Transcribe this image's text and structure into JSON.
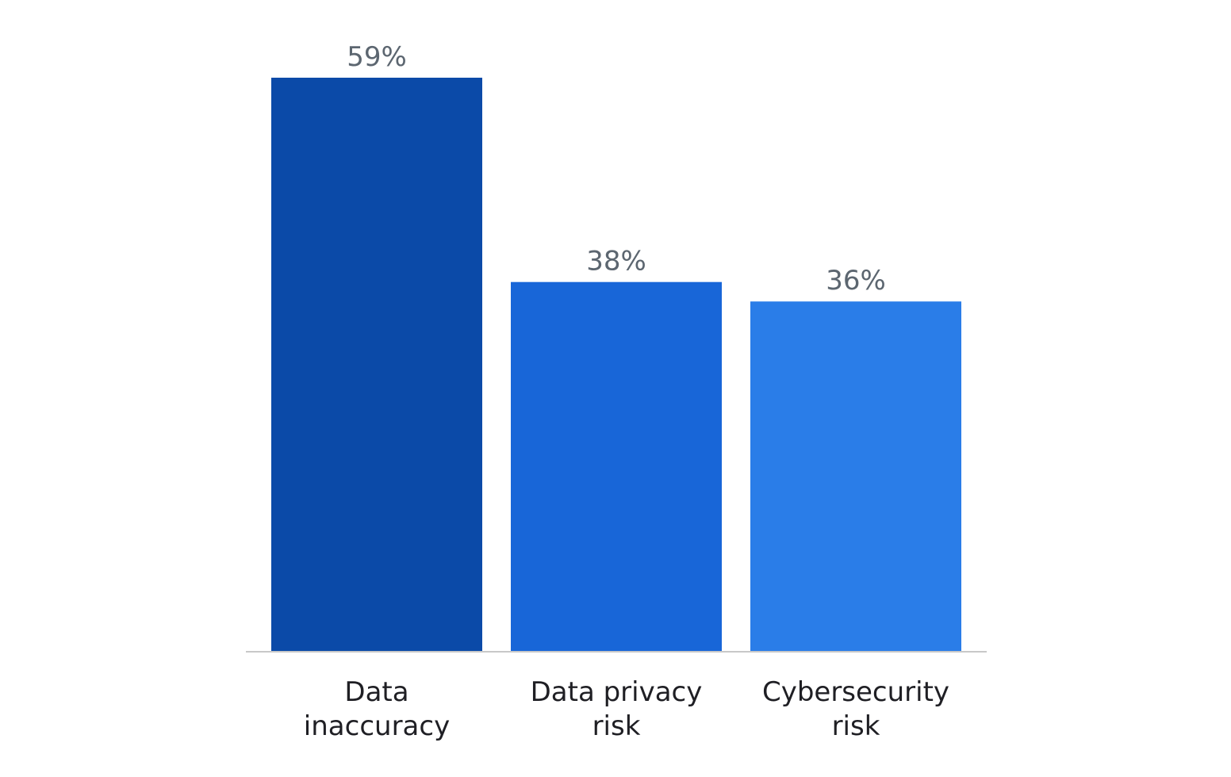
{
  "chart_data": {
    "type": "bar",
    "categories": [
      "Data inaccuracy",
      "Data privacy risk",
      "Cybersecurity risk"
    ],
    "category_label_lines": [
      [
        "Data",
        "inaccuracy"
      ],
      [
        "Data privacy",
        "risk"
      ],
      [
        "Cybersecurity",
        "risk"
      ]
    ],
    "values": [
      59,
      38,
      36
    ],
    "value_labels": [
      "59%",
      "38%",
      "36%"
    ],
    "bar_colors": [
      "#0b4aa8",
      "#1866d8",
      "#2a7de8"
    ],
    "title": "",
    "xlabel": "",
    "ylabel": "",
    "ylim": [
      0,
      59
    ],
    "grid": false,
    "legend": "none",
    "baseline_color": "#c8c8c8"
  }
}
